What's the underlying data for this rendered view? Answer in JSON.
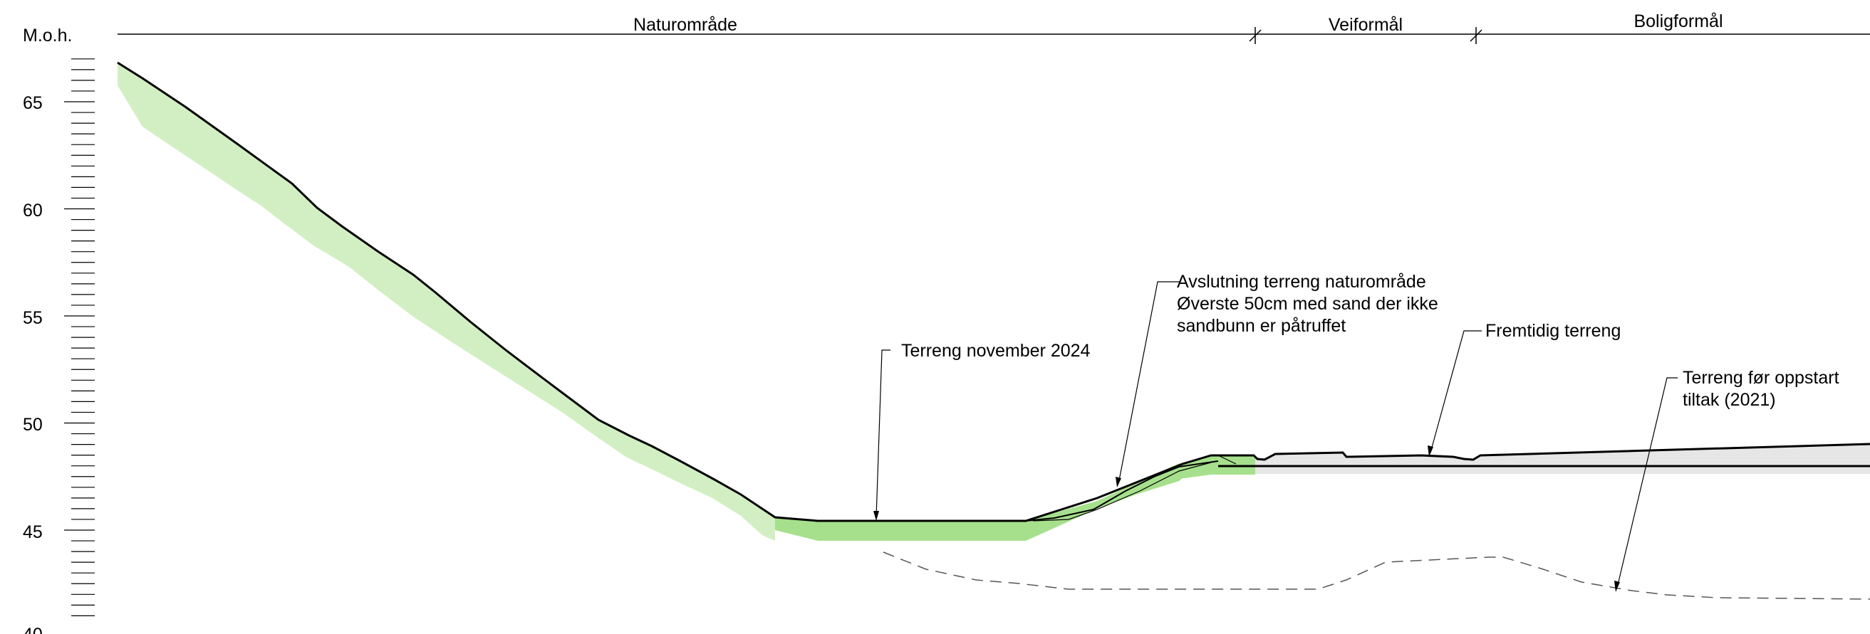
{
  "axis": {
    "label": "M.o.h.",
    "tick_labels": [
      "40",
      "45",
      "50",
      "55",
      "60",
      "65"
    ]
  },
  "zones": {
    "nature": "Naturområde",
    "road": "Veiformål",
    "housing": "Boligformål"
  },
  "annotations": {
    "terrain_2024": "Terreng november 2024",
    "finish_line1": "Avslutning terreng naturområde",
    "finish_line2": "Øverste 50cm med sand der ikke",
    "finish_line3": "sandbunn er påtruffet",
    "future": "Fremtidig terreng",
    "before_line1": "Terreng før oppstart",
    "before_line2": "tiltak (2021)"
  },
  "colors": {
    "green_fill": "#a6e08c",
    "light_green_fill": "#d2efc3",
    "grey_fill": "#e6e6e6",
    "line": "#000000",
    "dashed": "#555555"
  }
}
